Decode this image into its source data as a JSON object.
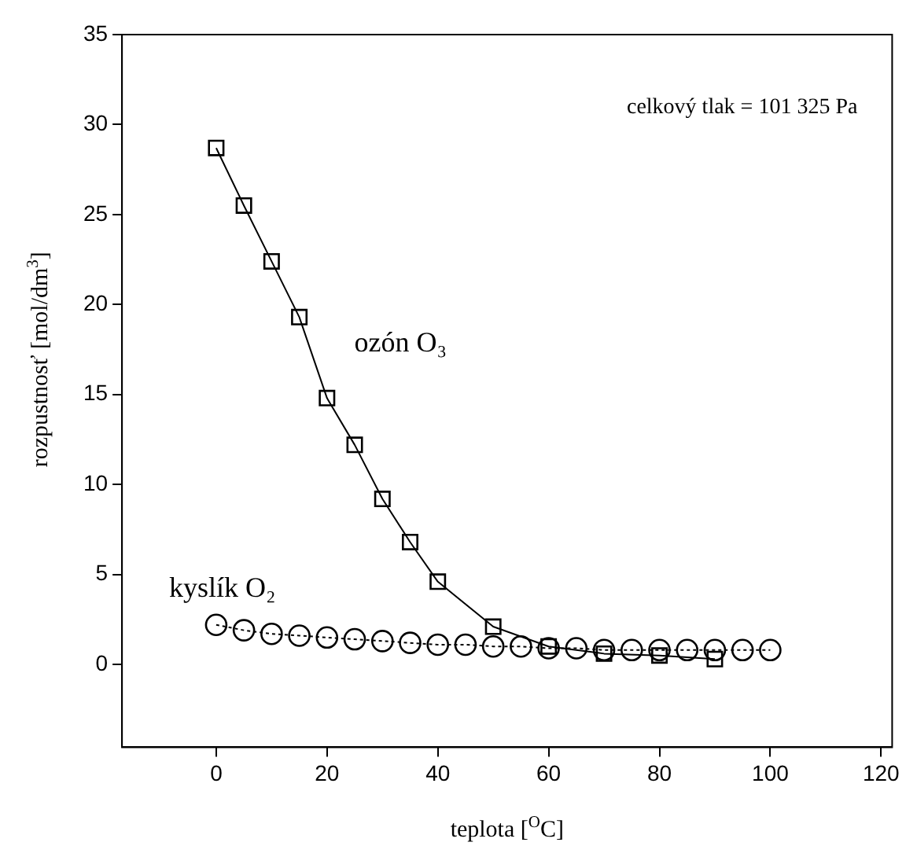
{
  "chart_data": {
    "type": "line",
    "xlabel": "teplota [$^{O}$C]",
    "ylabel": "rozpustnosť [mol/dm$^{3}$]",
    "annotations": [
      "celkový tlak = 101 325 Pa"
    ],
    "xlim": [
      -17,
      122
    ],
    "xticks": [
      0,
      20,
      40,
      60,
      80,
      100,
      120
    ],
    "ylim": [
      -4.6,
      35
    ],
    "yticks": [
      0,
      5,
      10,
      15,
      20,
      25,
      30,
      35
    ],
    "grid": false,
    "legend": false,
    "series": [
      {
        "name": "ozón O₃",
        "color": "#000000",
        "marker": "square",
        "line_style": "solid",
        "x": [
          0,
          5,
          10,
          15,
          20,
          25,
          30,
          35,
          40,
          50,
          60,
          70,
          80,
          90
        ],
        "values": [
          28.7,
          25.5,
          22.4,
          19.3,
          14.8,
          12.2,
          9.2,
          6.8,
          4.6,
          2.1,
          1.0,
          0.6,
          0.5,
          0.3
        ]
      },
      {
        "name": "kyslík O₂",
        "color": "#000000",
        "marker": "circle",
        "line_style": "dotted",
        "x": [
          0,
          5,
          10,
          15,
          20,
          25,
          30,
          35,
          40,
          45,
          50,
          55,
          60,
          65,
          70,
          75,
          80,
          85,
          90,
          95,
          100
        ],
        "values": [
          2.2,
          1.9,
          1.7,
          1.6,
          1.5,
          1.4,
          1.3,
          1.2,
          1.1,
          1.1,
          1.0,
          1.0,
          0.9,
          0.9,
          0.8,
          0.8,
          0.8,
          0.8,
          0.8,
          0.8,
          0.8
        ]
      }
    ]
  }
}
